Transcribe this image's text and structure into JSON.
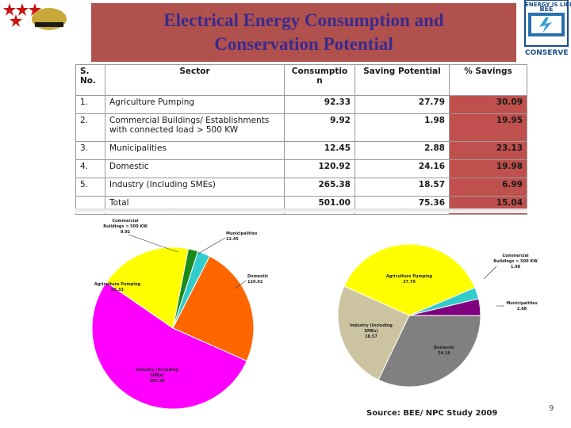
{
  "title_line1": "Electrical Energy Consumption and",
  "title_line2": "Conservation Potential",
  "logo_right_label": "CONSERVE IT",
  "logo_right_top": "ENERGY IS LIFE",
  "logo_right_mid": "BEE",
  "table": {
    "headers": [
      "S. No.",
      "Sector",
      "Consumptio n",
      "Saving Potential",
      "% Savings"
    ],
    "rows": [
      {
        "sno": "1.",
        "sector": "Agriculture Pumping",
        "consumption": "92.33",
        "saving": "27.79",
        "pct": "30.09"
      },
      {
        "sno": "2.",
        "sector": "Commercial Buildings/ Establishments with connected load > 500 KW",
        "consumption": "9.92",
        "saving": "1.98",
        "pct": "19.95"
      },
      {
        "sno": "3.",
        "sector": "Municipalities",
        "consumption": "12.45",
        "saving": "2.88",
        "pct": "23.13"
      },
      {
        "sno": "4.",
        "sector": "Domestic",
        "consumption": "120.92",
        "saving": "24.16",
        "pct": "19.98"
      },
      {
        "sno": "5.",
        "sector": "Industry (Including SMEs)",
        "consumption": "265.38",
        "saving": "18.57",
        "pct": "6.99"
      },
      {
        "sno": "",
        "sector": "Total",
        "consumption": "501.00",
        "saving": "75.36",
        "pct": "15.04"
      }
    ]
  },
  "chart_data": [
    {
      "type": "pie",
      "slices": [
        {
          "label": "Commercial Buildings > 500 KW",
          "value": 9.92,
          "display": "9.92",
          "color": "#1a8a1a"
        },
        {
          "label": "Municipalities",
          "value": 12.45,
          "display": "12.45",
          "color": "#33cccc"
        },
        {
          "label": "Domestic",
          "value": 120.92,
          "display": "120.92",
          "color": "#ff6600"
        },
        {
          "label": "Industry (Including SMEs)",
          "value": 265.38,
          "display": "265.38",
          "color": "#ff00ff"
        },
        {
          "label": "Agriculture Pumping",
          "value": 92.33,
          "display": "92.33",
          "color": "#ffff00"
        }
      ]
    },
    {
      "type": "pie",
      "slices": [
        {
          "label": "Commercial Buildings > 500 KW",
          "value": 1.98,
          "display": "1.98",
          "color": "#33cccc"
        },
        {
          "label": "Municipalities",
          "value": 2.88,
          "display": "2.88",
          "color": "#800080"
        },
        {
          "label": "Domestic",
          "value": 24.16,
          "display": "24.16",
          "color": "#808080"
        },
        {
          "label": "Industry (Including SMEs)",
          "value": 18.57,
          "display": "18.57",
          "color": "#ccc4a0"
        },
        {
          "label": "Agriculture Pumping",
          "value": 27.79,
          "display": "27.79",
          "color": "#ffff00"
        }
      ]
    }
  ],
  "source": "Source: BEE/ NPC Study 2009",
  "page_number": "9"
}
